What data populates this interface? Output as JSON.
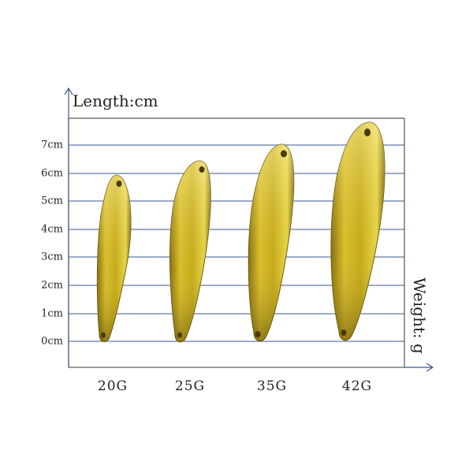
{
  "chart_title": "Length:cm",
  "x_axis_title": "Weight: g",
  "y_ticks": [
    "7cm",
    "6cm",
    "5cm",
    "4cm",
    "3cm",
    "2cm",
    "1cm",
    "0cm"
  ],
  "x_ticks": [
    "20G",
    "25G",
    "35G",
    "42G"
  ],
  "colors": {
    "gridline": "#3a5a8c",
    "frame": "#555555",
    "lure_gold": "#c9ad1e",
    "lure_dark": "#7a6410"
  }
}
